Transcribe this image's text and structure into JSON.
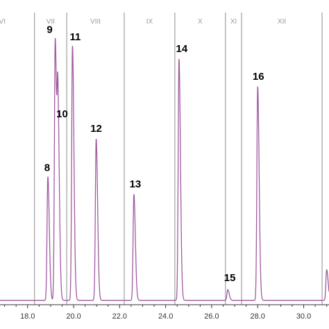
{
  "chart_data": {
    "type": "line",
    "xlim": [
      16.8,
      31.1
    ],
    "ylim": [
      0,
      100
    ],
    "grid": false,
    "x_ticks": [
      "18.0",
      "20.0",
      "22.0",
      "24.0",
      "26.0",
      "28.0",
      "30.0"
    ],
    "x_tick_values": [
      18.0,
      20.0,
      22.0,
      24.0,
      26.0,
      28.0,
      30.0
    ],
    "segments": [
      {
        "label": "VI",
        "start": 16.8,
        "end": 18.3
      },
      {
        "label": "VII",
        "start": 18.3,
        "end": 19.7
      },
      {
        "label": "VIII",
        "start": 19.7,
        "end": 22.2
      },
      {
        "label": "IX",
        "start": 22.2,
        "end": 24.4
      },
      {
        "label": "X",
        "start": 24.4,
        "end": 26.6
      },
      {
        "label": "XI",
        "start": 26.6,
        "end": 27.3
      },
      {
        "label": "XII",
        "start": 27.3,
        "end": 30.8
      }
    ],
    "peaks": [
      {
        "label": "8",
        "x": 18.88,
        "y": 44.0
      },
      {
        "label": "9",
        "x": 19.2,
        "y": 91.5
      },
      {
        "label": "10",
        "x": 19.32,
        "y": 63.0
      },
      {
        "label": "11",
        "x": 19.95,
        "y": 89.0
      },
      {
        "label": "12",
        "x": 20.98,
        "y": 57.0
      },
      {
        "label": "13",
        "x": 22.62,
        "y": 38.0
      },
      {
        "label": "14",
        "x": 24.58,
        "y": 84.5
      },
      {
        "label": "15",
        "x": 26.7,
        "y": 5.2
      },
      {
        "label": "16",
        "x": 28.0,
        "y": 75.0
      },
      {
        "label": "",
        "x": 31.0,
        "y": 12.0
      }
    ],
    "series": [
      {
        "color": "#a05aa0"
      }
    ]
  }
}
